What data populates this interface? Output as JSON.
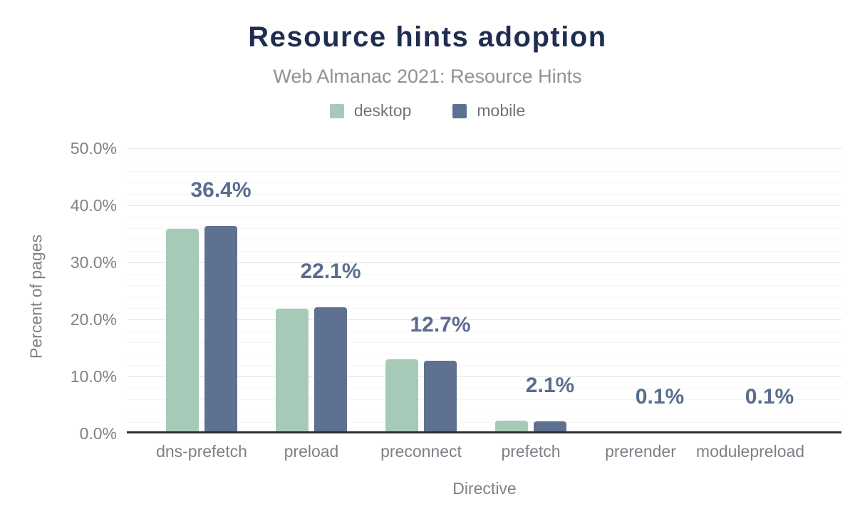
{
  "chart_data": {
    "type": "bar",
    "title": "Resource hints adoption",
    "subtitle": "Web Almanac 2021: Resource Hints",
    "xlabel": "Directive",
    "ylabel": "Percent of pages",
    "categories": [
      "dns-prefetch",
      "preload",
      "preconnect",
      "prefetch",
      "prerender",
      "modulepreload"
    ],
    "series": [
      {
        "name": "desktop",
        "color": "#a7c9b8",
        "values": [
          35.9,
          21.9,
          13.0,
          2.3,
          0.1,
          0.1
        ]
      },
      {
        "name": "mobile",
        "color": "#5f7190",
        "values": [
          36.4,
          22.1,
          12.7,
          2.1,
          0.1,
          0.1
        ]
      }
    ],
    "value_labels": [
      "36.4%",
      "22.1%",
      "12.7%",
      "2.1%",
      "0.1%",
      "0.1%"
    ],
    "value_label_series": "mobile",
    "ylim": [
      0,
      50
    ],
    "y_major_step": 10,
    "y_minor_step": 2,
    "y_tick_labels": [
      "0.0%",
      "10.0%",
      "20.0%",
      "30.0%",
      "40.0%",
      "50.0%"
    ],
    "grid": true,
    "legend_position": "top",
    "colors": {
      "background": "#ffffff",
      "title": "#1f2d50",
      "subtitle": "#8e9298",
      "legend_text": "#6f757d",
      "axis_text": "#7c8187",
      "value_label": "#5a6d90",
      "axis_line": "#2d3035",
      "grid_major": "#e5e5e5",
      "grid_minor": "#f5f5f5"
    }
  }
}
